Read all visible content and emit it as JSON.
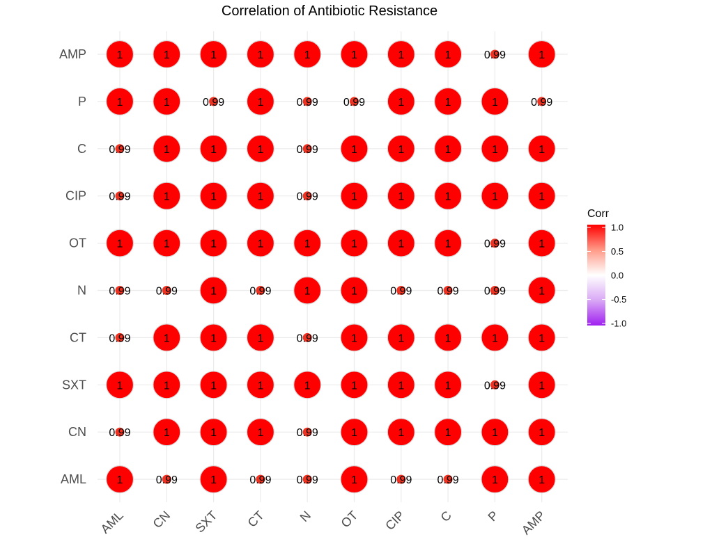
{
  "chart_data": {
    "type": "heatmap",
    "title": "Correlation of Antibiotic Resistance",
    "x_labels": [
      "AML",
      "CN",
      "SXT",
      "CT",
      "N",
      "OT",
      "CIP",
      "C",
      "P",
      "AMP"
    ],
    "y_labels": [
      "AMP",
      "P",
      "C",
      "CIP",
      "OT",
      "N",
      "CT",
      "SXT",
      "CN",
      "AML"
    ],
    "rows": [
      {
        "y": "AMP",
        "values": [
          1,
          1,
          1,
          1,
          1,
          1,
          1,
          1,
          0.99,
          1
        ]
      },
      {
        "y": "P",
        "values": [
          1,
          1,
          0.99,
          1,
          0.99,
          0.99,
          1,
          1,
          1,
          0.99
        ]
      },
      {
        "y": "C",
        "values": [
          0.99,
          1,
          1,
          1,
          0.99,
          1,
          1,
          1,
          1,
          1
        ]
      },
      {
        "y": "CIP",
        "values": [
          0.99,
          1,
          1,
          1,
          0.99,
          1,
          1,
          1,
          1,
          1
        ]
      },
      {
        "y": "OT",
        "values": [
          1,
          1,
          1,
          1,
          1,
          1,
          1,
          1,
          0.99,
          1
        ]
      },
      {
        "y": "N",
        "values": [
          0.99,
          0.99,
          1,
          0.99,
          1,
          1,
          0.99,
          0.99,
          0.99,
          1
        ]
      },
      {
        "y": "CT",
        "values": [
          0.99,
          1,
          1,
          1,
          0.99,
          1,
          1,
          1,
          1,
          1
        ]
      },
      {
        "y": "SXT",
        "values": [
          1,
          1,
          1,
          1,
          1,
          1,
          1,
          1,
          0.99,
          1
        ]
      },
      {
        "y": "CN",
        "values": [
          0.99,
          1,
          1,
          1,
          0.99,
          1,
          1,
          1,
          1,
          1
        ]
      },
      {
        "y": "AML",
        "values": [
          1,
          0.99,
          1,
          0.99,
          0.99,
          1,
          0.99,
          0.99,
          1,
          1
        ]
      }
    ],
    "legend": {
      "title": "Corr",
      "ticks": [
        "1.0",
        "0.5",
        "0.0",
        "-0.5",
        "-1.0"
      ],
      "range": [
        -1,
        1
      ]
    },
    "colors": {
      "high": "#ff0000",
      "mid": "#ffffff",
      "low": "#a020f0"
    },
    "grid": true,
    "legend_position": "right"
  }
}
